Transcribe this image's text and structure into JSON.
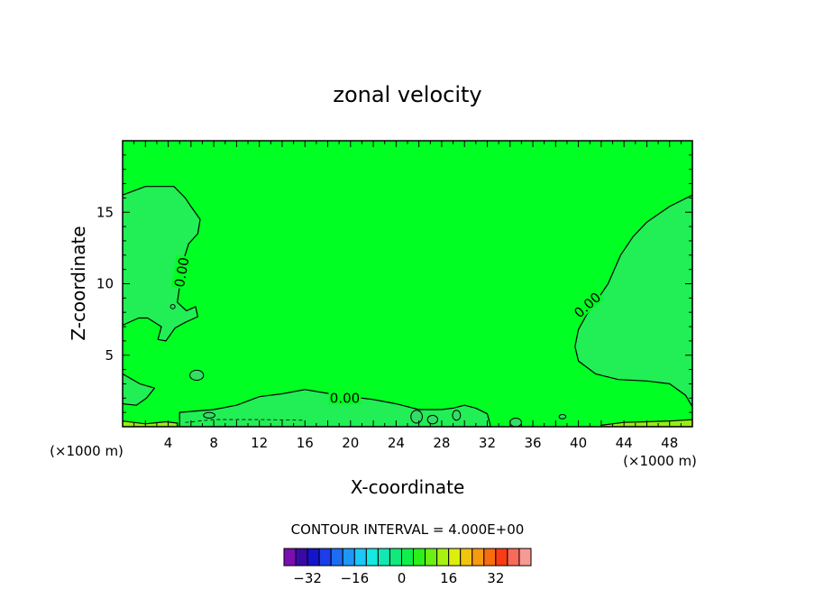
{
  "chart_data": {
    "type": "contour",
    "title": "zonal velocity",
    "xlabel": "X-coordinate",
    "ylabel": "Z-coordinate",
    "x_unit_left": "(×1000 m)",
    "x_unit_right": "(×1000 m)",
    "xlim": [
      0,
      50
    ],
    "ylim": [
      0,
      20
    ],
    "xticks": [
      4,
      8,
      12,
      16,
      20,
      24,
      28,
      32,
      36,
      40,
      44,
      48
    ],
    "yticks": [
      5,
      10,
      15
    ],
    "contour_interval_text": "CONTOUR INTERVAL = 4.000E+00",
    "contour_labels": [
      {
        "text": "0.00",
        "x": 5.2,
        "y": 10.8,
        "angle": -80
      },
      {
        "text": "0.00",
        "x": 40.8,
        "y": 8.5,
        "angle": -42
      },
      {
        "text": "0.00",
        "x": 19.5,
        "y": 2.0,
        "angle": 0
      }
    ],
    "fill_colors": {
      "background": "#00ff22",
      "negative_weak": "#22ee55",
      "negative_band": "#33dd66",
      "positive_weak": "#99ee11"
    },
    "regions": [
      {
        "name": "left-upper-negative",
        "level": "negative_weak",
        "points": [
          [
            0,
            16.2
          ],
          [
            2,
            16.8
          ],
          [
            4.5,
            16.8
          ],
          [
            5.5,
            16
          ],
          [
            6,
            15.4
          ],
          [
            6.8,
            14.5
          ],
          [
            6.6,
            13.5
          ],
          [
            5.8,
            12.8
          ],
          [
            5.4,
            11.8
          ],
          [
            5.6,
            10.6
          ],
          [
            5,
            9.8
          ],
          [
            4.8,
            8.7
          ],
          [
            5.6,
            8.1
          ],
          [
            6.4,
            8.4
          ],
          [
            6.6,
            7.7
          ],
          [
            5.5,
            7.3
          ],
          [
            4.6,
            6.9
          ],
          [
            3.8,
            6.0
          ],
          [
            3.1,
            6.1
          ],
          [
            3.4,
            7.0
          ],
          [
            2.2,
            7.6
          ],
          [
            1.4,
            7.6
          ],
          [
            0,
            7.1
          ]
        ]
      },
      {
        "name": "right-negative",
        "level": "negative_weak",
        "points": [
          [
            50,
            16.2
          ],
          [
            48,
            15.4
          ],
          [
            46,
            14.3
          ],
          [
            44.8,
            13.3
          ],
          [
            43.7,
            12.0
          ],
          [
            42.6,
            10.0
          ],
          [
            41.5,
            8.7
          ],
          [
            40.7,
            7.8
          ],
          [
            40,
            6.8
          ],
          [
            39.7,
            5.6
          ],
          [
            40,
            4.6
          ],
          [
            41.5,
            3.7
          ],
          [
            43.5,
            3.3
          ],
          [
            46,
            3.2
          ],
          [
            48,
            3.0
          ],
          [
            49.4,
            2.2
          ],
          [
            50,
            1.4
          ]
        ]
      },
      {
        "name": "left-lower-negative",
        "level": "negative_weak",
        "points": [
          [
            0,
            3.7
          ],
          [
            1.5,
            3.0
          ],
          [
            2.8,
            2.7
          ],
          [
            2.1,
            2.0
          ],
          [
            1.2,
            1.5
          ],
          [
            0,
            1.6
          ]
        ]
      },
      {
        "name": "bottom-band-negative",
        "level": "negative_weak",
        "points": [
          [
            5,
            0
          ],
          [
            5,
            1.0
          ],
          [
            8,
            1.2
          ],
          [
            10,
            1.5
          ],
          [
            12,
            2.1
          ],
          [
            14,
            2.3
          ],
          [
            16,
            2.6
          ],
          [
            17.5,
            2.4
          ],
          [
            19,
            2.2
          ],
          [
            22,
            1.9
          ],
          [
            24,
            1.6
          ],
          [
            26,
            1.2
          ],
          [
            28,
            1.2
          ],
          [
            29,
            1.3
          ],
          [
            30,
            1.5
          ],
          [
            31,
            1.3
          ],
          [
            32,
            0.9
          ],
          [
            32.3,
            0.0
          ]
        ]
      },
      {
        "name": "bottom-positive-left",
        "level": "positive_weak",
        "points": [
          [
            0,
            0.4
          ],
          [
            2,
            0.2
          ],
          [
            3.8,
            0.35
          ],
          [
            4.8,
            0.25
          ],
          [
            4.8,
            0
          ],
          [
            0,
            0
          ]
        ]
      },
      {
        "name": "bottom-positive-right",
        "level": "positive_weak",
        "points": [
          [
            42,
            0.1
          ],
          [
            44,
            0.3
          ],
          [
            46,
            0.35
          ],
          [
            48,
            0.4
          ],
          [
            50,
            0.5
          ],
          [
            50,
            0
          ],
          [
            42,
            0
          ]
        ]
      }
    ],
    "colorbar": {
      "colors": [
        "#7a0eb0",
        "#3b08a8",
        "#1414c8",
        "#1d3de8",
        "#1e6cf2",
        "#1d98f6",
        "#1bc8f8",
        "#16e8e2",
        "#12e8b4",
        "#10ea7c",
        "#10ee4c",
        "#2cf018",
        "#6af012",
        "#a8f210",
        "#dcee10",
        "#f2c40e",
        "#f69a10",
        "#f86c12",
        "#f83c14",
        "#f86a5a",
        "#f89a94"
      ],
      "labels": [
        {
          "text": "−32",
          "slot": 2
        },
        {
          "text": "−16",
          "slot": 6
        },
        {
          "text": "0",
          "slot": 10
        },
        {
          "text": "16",
          "slot": 14
        },
        {
          "text": "32",
          "slot": 18
        }
      ]
    }
  }
}
